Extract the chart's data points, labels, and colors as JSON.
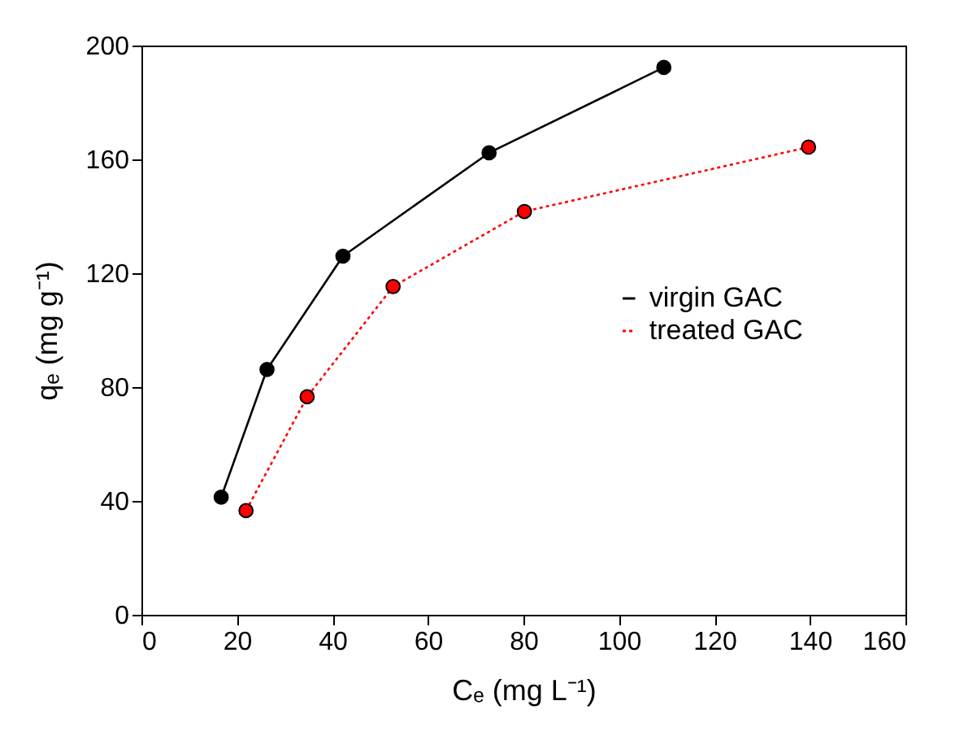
{
  "chart_data": {
    "type": "line",
    "xlabel": "Cₑ (mg L⁻¹)",
    "ylabel": "qₑ (mg g⁻¹)",
    "series": [
      {
        "name": "virgin GAC",
        "color": "#000000",
        "line_style": "solid",
        "marker": "circle",
        "x": [
          16.7,
          26.3,
          42.2,
          72.8,
          109.4
        ],
        "values": [
          41.3,
          86.2,
          126,
          162.3,
          192.3
        ]
      },
      {
        "name": "treated GAC",
        "color": "#ff0000",
        "line_style": "dotted",
        "marker": "circle",
        "x": [
          21.9,
          34.7,
          52.7,
          80.2,
          139.7
        ],
        "values": [
          36.6,
          76.6,
          115.3,
          141.7,
          164.3
        ]
      }
    ],
    "xlim": [
      0,
      160
    ],
    "xticks": [
      0,
      20,
      40,
      60,
      80,
      100,
      120,
      140,
      160
    ],
    "ylim": [
      0,
      200
    ],
    "yticks": [
      0,
      40,
      80,
      120,
      160,
      200
    ],
    "grid": false,
    "legend": "right"
  }
}
